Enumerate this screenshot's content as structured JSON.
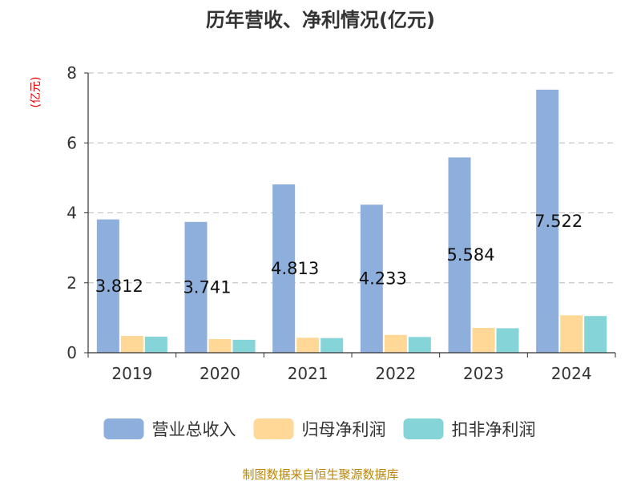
{
  "chart_data": {
    "type": "bar",
    "title": "历年营收、净利情况(亿元)",
    "unit_label": "(亿元)",
    "categories": [
      "2019",
      "2020",
      "2021",
      "2022",
      "2023",
      "2024"
    ],
    "series": [
      {
        "name": "营业总收入",
        "color": "#8eaedb",
        "values": [
          3.812,
          3.741,
          4.813,
          4.233,
          5.584,
          7.522
        ],
        "labels": [
          "3.812",
          "3.741",
          "4.813",
          "4.233",
          "5.584",
          "7.522"
        ]
      },
      {
        "name": "归母净利润",
        "color": "#ffd797",
        "values": [
          0.48,
          0.39,
          0.43,
          0.51,
          0.71,
          1.07
        ]
      },
      {
        "name": "扣非净利润",
        "color": "#84d4d8",
        "values": [
          0.46,
          0.37,
          0.42,
          0.45,
          0.7,
          1.05
        ]
      }
    ],
    "ylim": [
      0,
      8
    ],
    "yticks": [
      "0",
      "2",
      "4",
      "6",
      "8"
    ],
    "grid": true,
    "legend_position": "bottom",
    "source": "制图数据来自恒生聚源数据库"
  }
}
